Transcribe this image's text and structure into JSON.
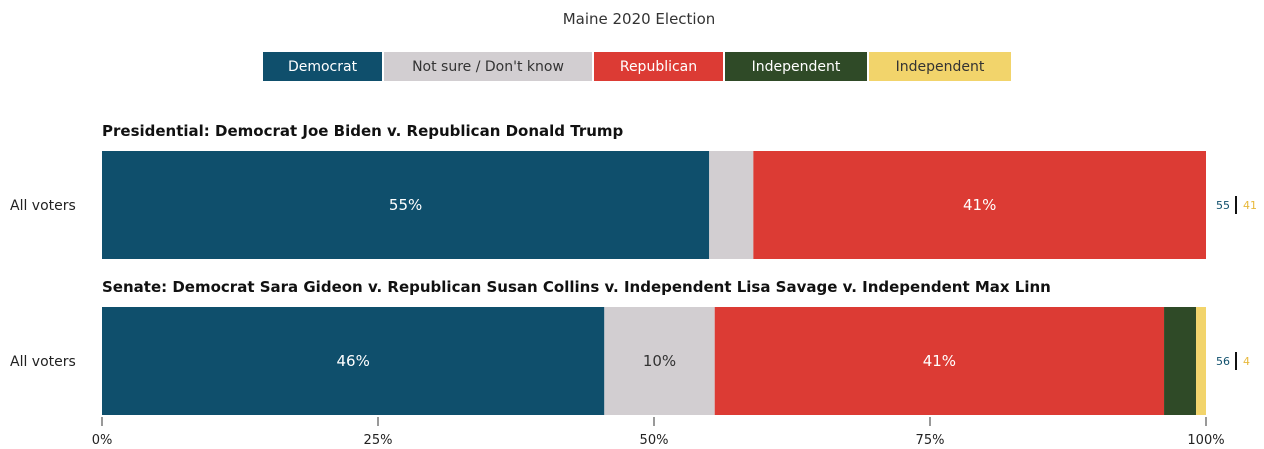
{
  "chart_data": {
    "type": "bar",
    "orientation": "horizontal",
    "stacked": true,
    "title": "Maine 2020 Election",
    "xlim": [
      0,
      100
    ],
    "x_ticks": [
      "0%",
      "25%",
      "50%",
      "75%",
      "100%"
    ],
    "x_tick_values": [
      0,
      25,
      50,
      75,
      100
    ],
    "legend_position": "top",
    "legend": [
      {
        "label": "Democrat",
        "color": "#0f4f6c",
        "text_color": "#ffffff"
      },
      {
        "label": "Not sure / Don't know",
        "color": "#d2ced1",
        "text_color": "#333333"
      },
      {
        "label": "Republican",
        "color": "#dc3b34",
        "text_color": "#ffffff"
      },
      {
        "label": "Independent",
        "color": "#2f4a27",
        "text_color": "#ffffff"
      },
      {
        "label": "Independent",
        "color": "#f2d46b",
        "text_color": "#333333"
      }
    ],
    "panels": [
      {
        "title": "Presidential: Democrat Joe Biden v. Republican Donald Trump",
        "rows": [
          {
            "label": "All voters",
            "segments": [
              {
                "category": "Democrat",
                "value": 55,
                "label": "55%",
                "color": "#0f4f6c",
                "text_color": "#ffffff"
              },
              {
                "category": "Not sure / Don't know",
                "value": 4,
                "label": "",
                "color": "#d2ced1",
                "text_color": "#333333"
              },
              {
                "category": "Republican",
                "value": 41,
                "label": "41%",
                "color": "#dc3b34",
                "text_color": "#ffffff"
              }
            ],
            "side_values": [
              {
                "value": "55",
                "color": "#0f4f6c"
              },
              {
                "value": "41",
                "color": "#e8b83a"
              }
            ]
          }
        ]
      },
      {
        "title": "Senate: Democrat Sara Gideon v. Republican Susan Collins v. Independent Lisa Savage v. Independent Max Linn",
        "rows": [
          {
            "label": "All voters",
            "segments": [
              {
                "category": "Democrat",
                "value": 45.5,
                "label": "46%",
                "color": "#0f4f6c",
                "text_color": "#ffffff"
              },
              {
                "category": "Not sure / Don't know",
                "value": 10,
                "label": "10%",
                "color": "#d2ced1",
                "text_color": "#333333"
              },
              {
                "category": "Republican",
                "value": 40.7,
                "label": "41%",
                "color": "#dc3b34",
                "text_color": "#ffffff"
              },
              {
                "category": "Independent",
                "value": 2.9,
                "label": "",
                "color": "#2f4a27",
                "text_color": "#ffffff"
              },
              {
                "category": "Independent",
                "value": 0.9,
                "label": "",
                "color": "#f2d46b",
                "text_color": "#333333"
              }
            ],
            "side_values": [
              {
                "value": "56",
                "color": "#0f4f6c"
              },
              {
                "value": "4",
                "color": "#e8b83a"
              }
            ]
          }
        ]
      }
    ]
  }
}
